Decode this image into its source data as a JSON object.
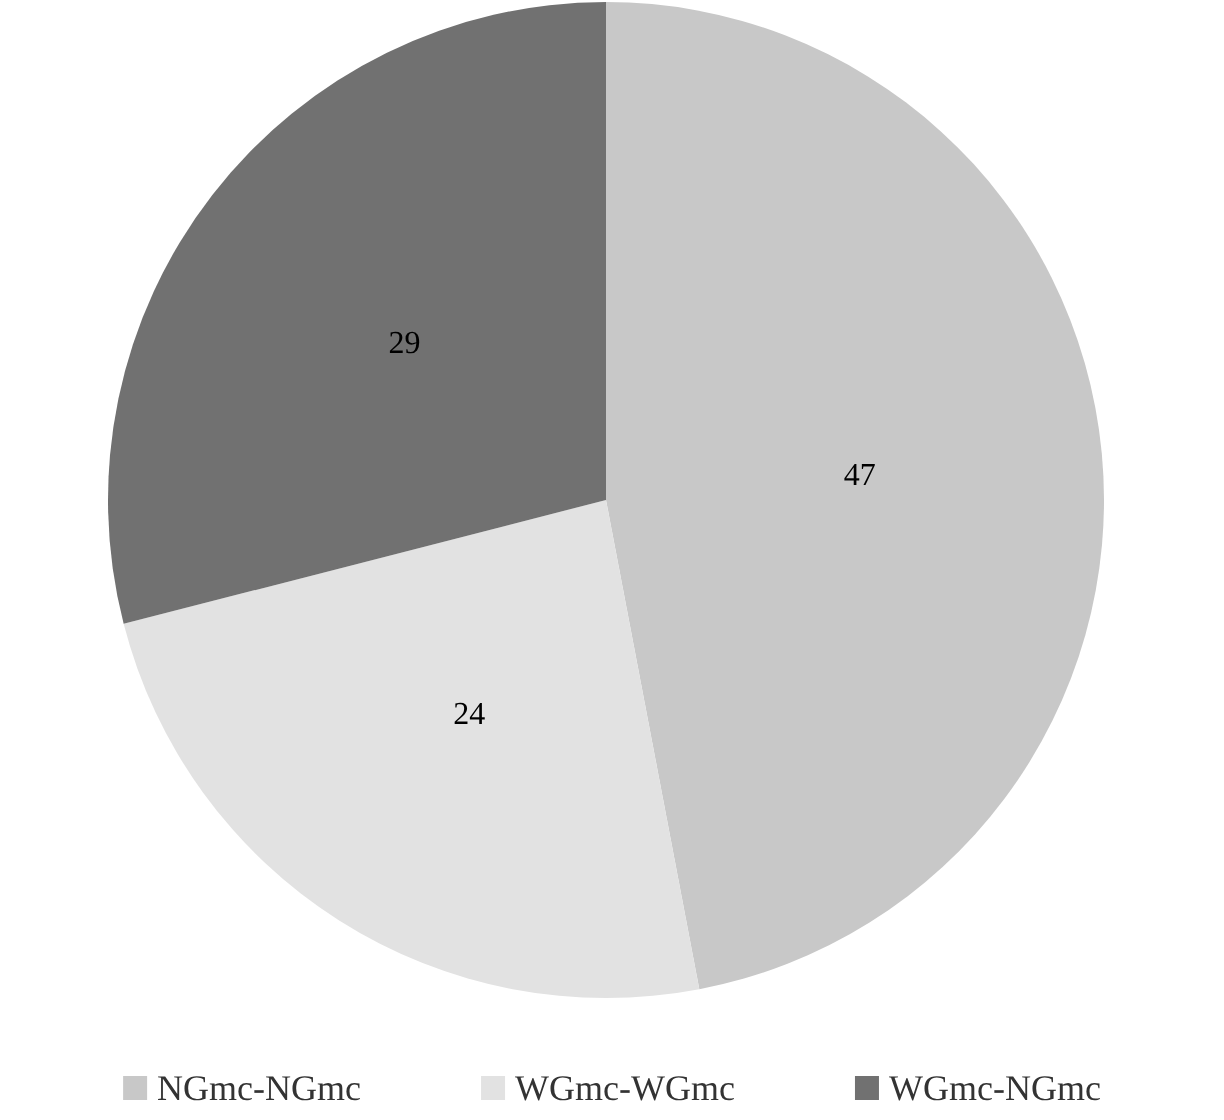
{
  "chart_data": {
    "type": "pie",
    "categories": [
      "NGmc-NGmc",
      "WGmc-WGmc",
      "WGmc-NGmc"
    ],
    "values": [
      47,
      24,
      29
    ],
    "colors": [
      "#c8c8c8",
      "#e2e2e2",
      "#717171"
    ],
    "data_labels": true,
    "legend": "bottom"
  }
}
